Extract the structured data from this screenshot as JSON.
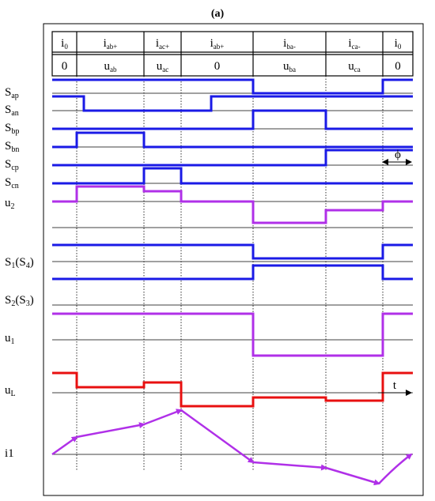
{
  "figure_label": "(a)",
  "intervals": [
    {
      "current": "i",
      "current_sub": "0",
      "voltage": "0",
      "voltage_sub": ""
    },
    {
      "current": "i",
      "current_sub": "ab+",
      "voltage": "u",
      "voltage_sub": "ab"
    },
    {
      "current": "i",
      "current_sub": "ac+",
      "voltage": "u",
      "voltage_sub": "ac"
    },
    {
      "current": "i",
      "current_sub": "ab+",
      "voltage": "0",
      "voltage_sub": ""
    },
    {
      "current": "i",
      "current_sub": "ba-",
      "voltage": "u",
      "voltage_sub": "ba"
    },
    {
      "current": "i",
      "current_sub": "ca-",
      "voltage": "u",
      "voltage_sub": "ca"
    },
    {
      "current": "i",
      "current_sub": "0",
      "voltage": "0",
      "voltage_sub": ""
    }
  ],
  "signal_labels": {
    "sap": {
      "main": "S",
      "sub": "ap"
    },
    "san": {
      "main": "S",
      "sub": "an"
    },
    "sbp": {
      "main": "S",
      "sub": "bp"
    },
    "sbn": {
      "main": "S",
      "sub": "bn"
    },
    "scp": {
      "main": "S",
      "sub": "cp"
    },
    "scn": {
      "main": "S",
      "sub": "cn"
    },
    "u2": {
      "main": "u",
      "sub": "2"
    },
    "s1s4": {
      "main": "S",
      "sub": "1",
      "suffix": "(S",
      "suffix_sub": "4",
      "close": ")"
    },
    "s2s3": {
      "main": "S",
      "sub": "2",
      "suffix": "(S",
      "suffix_sub": "3",
      "close": ")"
    },
    "u1": {
      "main": "u",
      "sub": "1"
    },
    "ul": {
      "main": "u",
      "sub": "L"
    },
    "i1": {
      "main": "i1"
    }
  },
  "annotations": {
    "phase_symbol": "ϕ",
    "time_label": "t"
  },
  "colors": {
    "switch": "#1a1ae6",
    "voltage": "#b030e8",
    "inductor_voltage": "#e81010",
    "grid": "#000000"
  }
}
